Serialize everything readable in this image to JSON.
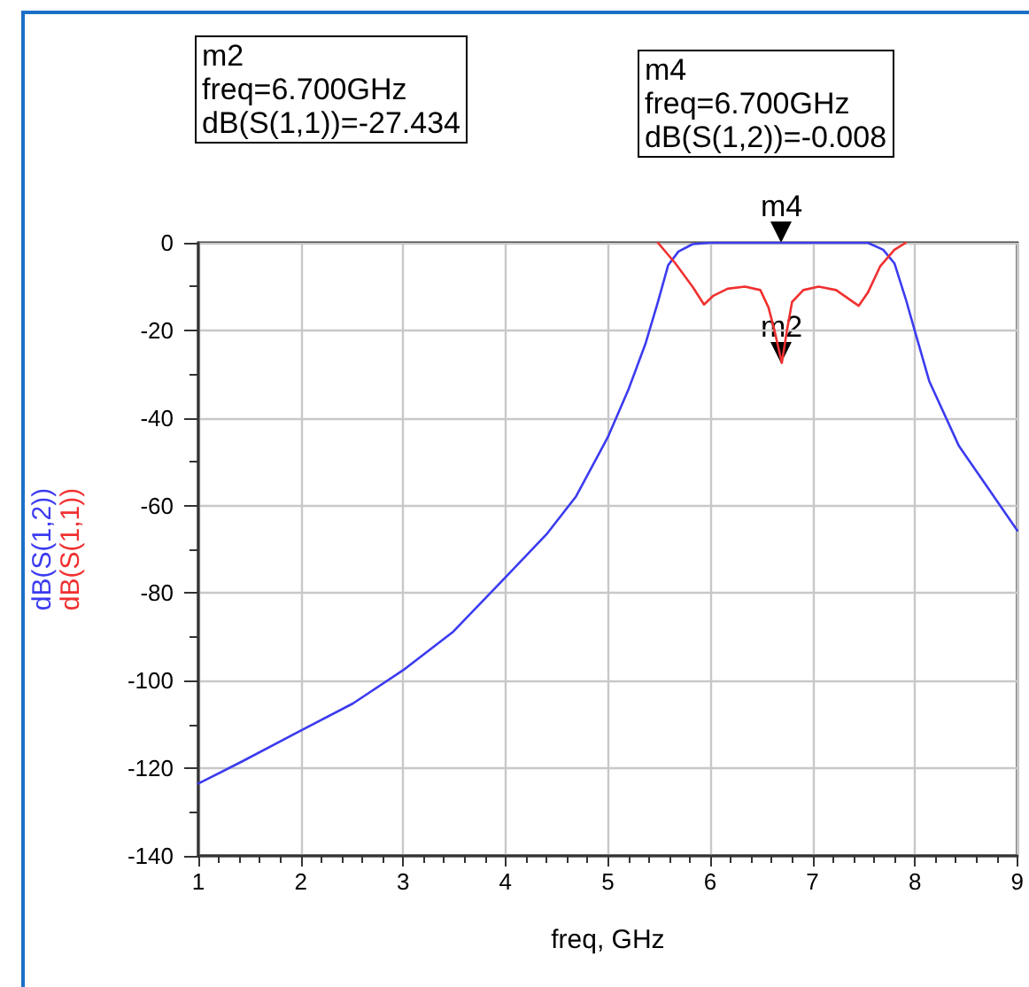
{
  "chart_data": {
    "type": "line",
    "xlabel": "freq, GHz",
    "xlim": [
      1,
      9
    ],
    "xticks": [
      1,
      2,
      3,
      4,
      5,
      6,
      7,
      8,
      9
    ],
    "ylim": [
      -140,
      0
    ],
    "yticks": [
      -140,
      -120,
      -100,
      -80,
      -60,
      -40,
      -20,
      0
    ],
    "grid": true,
    "marker": "none",
    "line_style": "solid",
    "series": [
      {
        "name": "dB(S(1,2))",
        "color": "#3b3bf0",
        "x": [
          1.0,
          1.43,
          2.0,
          2.51,
          3.0,
          3.49,
          4.0,
          4.4,
          4.69,
          5.0,
          5.2,
          5.37,
          5.49,
          5.59,
          5.69,
          5.83,
          6.0,
          6.7,
          7.54,
          7.69,
          7.8,
          7.91,
          8.0,
          8.14,
          8.43,
          8.69,
          9.0
        ],
        "values": [
          -123.5,
          -118.4,
          -111.4,
          -105.2,
          -97.6,
          -88.8,
          -76.4,
          -66.6,
          -57.9,
          -44.4,
          -33.6,
          -22.9,
          -13.5,
          -5.1,
          -2.0,
          -0.3,
          0,
          -0.008,
          0,
          -1.6,
          -4.7,
          -12.8,
          -20.2,
          -31.6,
          -46.4,
          -55.2,
          -65.7
        ]
      },
      {
        "name": "dB(S(1,1))",
        "color": "#f03030",
        "x": [
          5.49,
          5.66,
          5.83,
          5.94,
          6.03,
          6.17,
          6.34,
          6.49,
          6.57,
          6.63,
          6.7,
          6.75,
          6.8,
          6.91,
          7.06,
          7.23,
          7.45,
          7.54,
          7.66,
          7.8,
          7.91
        ],
        "values": [
          0,
          -4.7,
          -10.1,
          -14.1,
          -12.1,
          -10.5,
          -10,
          -10.8,
          -14.8,
          -20.2,
          -27.434,
          -20,
          -13.5,
          -10.8,
          -10,
          -10.8,
          -14.4,
          -11.4,
          -5.4,
          -1.6,
          0
        ]
      }
    ],
    "annotations": [
      "m2\nfreq=6.700GHz\ndB(S(1,1))=-27.434",
      "m4\nfreq=6.700GHz\ndB(S(1,2))=-0.008",
      {
        "text": "m2",
        "x": 6.7,
        "y": -27.434
      },
      {
        "text": "m4",
        "x": 6.7,
        "y": -0.008
      }
    ]
  }
}
